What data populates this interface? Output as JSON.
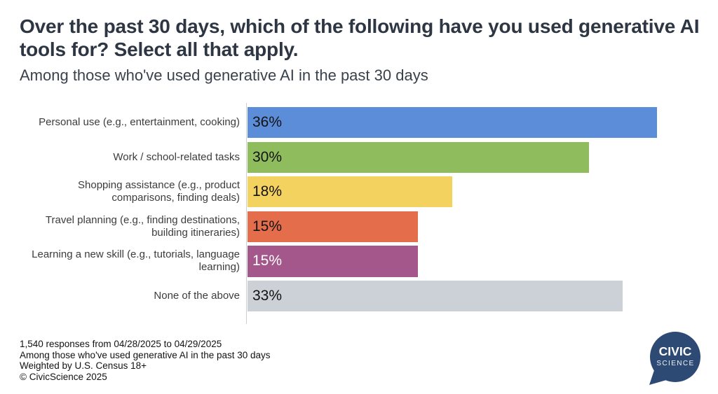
{
  "header": {
    "title": "Over the past 30 days, which of the following have you used generative AI tools for? Select all that apply.",
    "subtitle": "Among those who've used generative AI in the past 30 days"
  },
  "chart_data": {
    "type": "bar",
    "orientation": "horizontal",
    "title": "Over the past 30 days, which of the following have you used generative AI tools for? Select all that apply.",
    "subtitle": "Among those who've used generative AI in the past 30 days",
    "categories": [
      "Personal use (e.g., entertainment, cooking)",
      "Work / school-related tasks",
      "Shopping assistance (e.g., product comparisons, finding deals)",
      "Travel planning (e.g., finding destinations, building itineraries)",
      "Learning a new skill (e.g., tutorials, language learning)",
      "None of the above"
    ],
    "label_lines": [
      [
        "Personal use (e.g., entertainment, cooking)"
      ],
      [
        "Work / school-related tasks"
      ],
      [
        "Shopping assistance (e.g., product",
        "comparisons, finding deals)"
      ],
      [
        "Travel planning (e.g., finding destinations,",
        "building itineraries)"
      ],
      [
        "Learning a new skill (e.g., tutorials, language",
        "learning)"
      ],
      [
        "None of the above"
      ]
    ],
    "values": [
      36,
      30,
      18,
      15,
      15,
      33
    ],
    "value_labels": [
      "36%",
      "30%",
      "18%",
      "15%",
      "15%",
      "33%"
    ],
    "bar_colors": [
      "#5b8dd8",
      "#8fbc5c",
      "#f4d260",
      "#e46e4c",
      "#a3578b",
      "#ccd1d8"
    ],
    "value_label_colors": [
      "#121212",
      "#121212",
      "#121212",
      "#121212",
      "#ffffff",
      "#121212"
    ],
    "xlabel": "",
    "ylabel": "",
    "xlim": [
      0,
      41.5
    ],
    "grid": false,
    "legend": false
  },
  "footer": {
    "lines": [
      "1,540 responses from 04/28/2025 to 04/29/2025",
      "Among those who've used generative AI in the past 30 days",
      "Weighted by U.S. Census 18+",
      "© CivicScience 2025"
    ]
  },
  "logo": {
    "line1": "CIVIC",
    "line2": "SCIENCE",
    "color": "#2c4a74"
  }
}
